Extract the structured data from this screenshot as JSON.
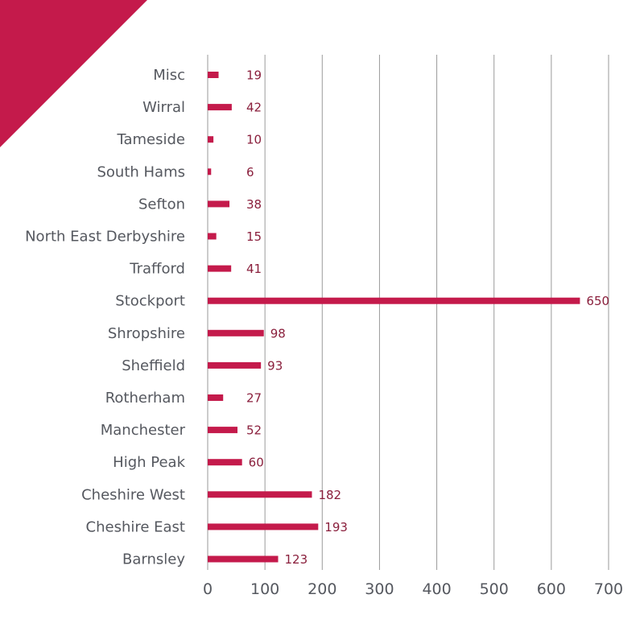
{
  "colors": {
    "accent": "#c41a4b",
    "value_text": "#8a1f3c",
    "label_text": "#55585f",
    "grid": "#9a9a9a"
  },
  "chart_data": {
    "type": "bar",
    "orientation": "horizontal",
    "categories": [
      "Misc",
      "Wirral",
      "Tameside",
      "South Hams",
      "Sefton",
      "North East Derbyshire",
      "Trafford",
      "Stockport",
      "Shropshire",
      "Sheffield",
      "Rotherham",
      "Manchester",
      "High Peak",
      "Cheshire West",
      "Cheshire East",
      "Barnsley"
    ],
    "values": [
      19,
      42,
      10,
      6,
      38,
      15,
      41,
      650,
      98,
      93,
      27,
      52,
      60,
      182,
      193,
      123
    ],
    "value_labels": [
      "19",
      "42",
      "10",
      "6",
      "38",
      "15",
      "41",
      "650",
      "98",
      "93",
      "27",
      "52",
      "60",
      "182",
      "193",
      "123"
    ],
    "xticks": [
      "0",
      "100",
      "200",
      "300",
      "400",
      "500",
      "600",
      "700"
    ],
    "xlim": [
      0,
      700
    ],
    "grid": "vertical",
    "title": "",
    "xlabel": "",
    "ylabel": ""
  }
}
